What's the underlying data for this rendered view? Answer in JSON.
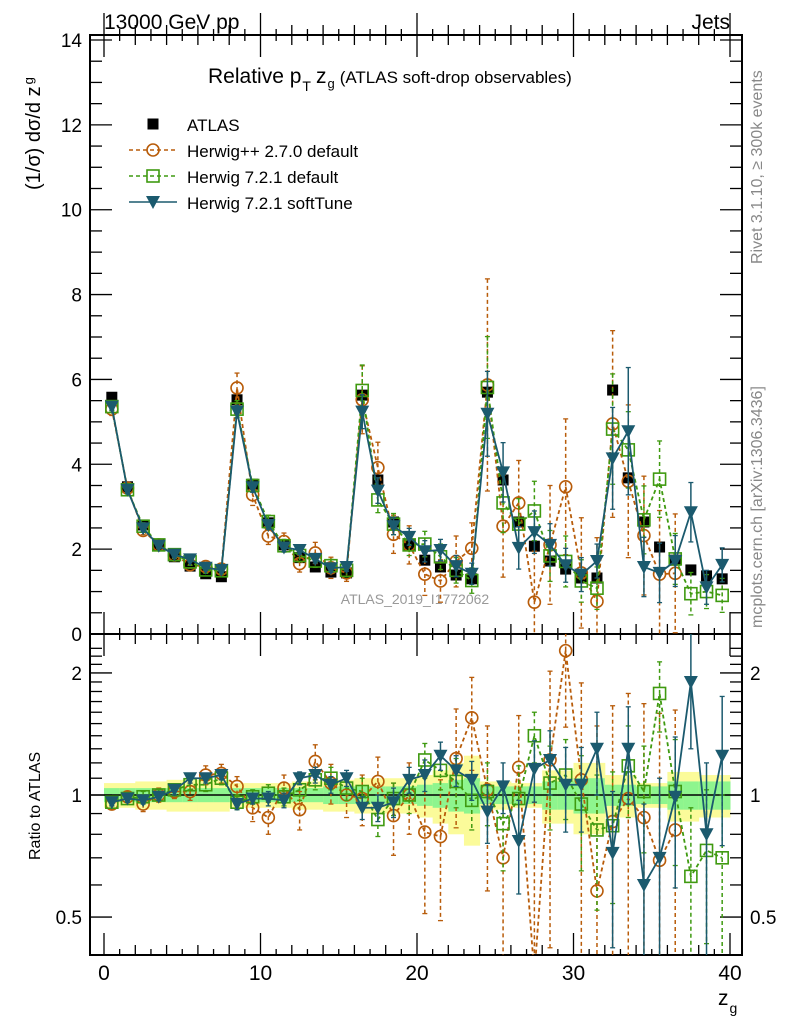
{
  "header": {
    "left": "13000 GeV pp",
    "right": "Jets"
  },
  "side_notes": {
    "rivet": "Rivet 3.1.10, ≥ 300k events",
    "mcplots": "mcplots.cern.ch [arXiv:1306.3436]"
  },
  "watermark": "ATLAS_2019_I1772062",
  "colors": {
    "atlas": "#000000",
    "herwigpp": "#b85c0a",
    "herwig721": "#3f9a10",
    "softtune": "#1b5a6e",
    "band_inner": "#8ef58e",
    "band_outer": "#fbfb9a"
  },
  "chart_data": [
    {
      "type": "scatter",
      "panel": "main",
      "title_main": "Relative p",
      "title_sub": "T",
      "title_z": "z",
      "title_zsub": "g",
      "title_rest": "(ATLAS soft-drop observables)",
      "ylabel": "(1/σ) dσ/d z",
      "ylabel_sub": "g",
      "xlim": [
        -0.5,
        40.5
      ],
      "ylim": [
        0,
        14
      ],
      "yticks": [
        0,
        2,
        4,
        6,
        8,
        10,
        12,
        14
      ],
      "ytick_labels": [
        "0",
        "2",
        "4",
        "6",
        "8",
        "10",
        "12",
        "14"
      ],
      "legend_position": "top-left",
      "x": [
        0.5,
        1.5,
        2.5,
        3.5,
        4.5,
        5.5,
        6.5,
        7.5,
        8.5,
        9.5,
        10.5,
        11.5,
        12.5,
        13.5,
        14.5,
        15.5,
        16.5,
        17.5,
        18.5,
        19.5,
        20.5,
        21.5,
        22.5,
        23.5,
        24.5,
        25.5,
        26.5,
        27.5,
        28.5,
        29.5,
        30.5,
        31.5,
        32.5,
        33.5,
        34.5,
        35.5,
        36.5,
        37.5,
        38.5,
        39.5
      ],
      "series": [
        {
          "name": "ATLAS",
          "key": "atlas",
          "marker": "square-filled",
          "line": "none",
          "values": [
            5.58,
            3.47,
            2.57,
            2.1,
            1.82,
            1.6,
            1.42,
            1.35,
            5.52,
            3.53,
            2.62,
            2.1,
            1.8,
            1.58,
            1.46,
            1.44,
            5.63,
            3.63,
            2.64,
            2.1,
            1.74,
            1.58,
            1.39,
            1.3,
            5.7,
            3.63,
            2.64,
            2.07,
            1.72,
            1.53,
            1.32,
            1.32,
            5.75,
            3.68,
            2.64,
            2.05,
            1.74,
            1.51,
            1.37,
            1.3
          ]
        },
        {
          "name": "Herwig++ 2.7.0 default",
          "key": "herwigpp",
          "marker": "circle-open",
          "line": "dashed",
          "values": [
            5.3,
            3.44,
            2.44,
            2.1,
            1.86,
            1.63,
            1.59,
            1.53,
            5.8,
            3.28,
            2.31,
            2.18,
            1.66,
            1.91,
            1.56,
            1.44,
            5.52,
            3.92,
            2.35,
            2.1,
            1.41,
            1.25,
            1.71,
            2.02,
            5.87,
            2.54,
            3.09,
            0.75,
            2.1,
            3.47,
            1.44,
            0.77,
            4.95,
            3.6,
            2.32,
            1.41,
            1.43,
            0.0,
            0.0,
            0.0
          ],
          "err": [
            0.15,
            0.1,
            0.1,
            0.08,
            0.08,
            0.08,
            0.1,
            0.1,
            0.35,
            0.25,
            0.2,
            0.2,
            0.2,
            0.25,
            0.25,
            0.2,
            0.8,
            0.6,
            0.45,
            0.45,
            0.5,
            0.5,
            0.6,
            0.6,
            2.5,
            1.2,
            1.0,
            1.2,
            1.4,
            1.6,
            1.3,
            1.5,
            2.2,
            1.8,
            1.4,
            1.5,
            1.4,
            0,
            0,
            0
          ]
        },
        {
          "name": "Herwig 7.2.1 default",
          "key": "herwig721",
          "marker": "square-open",
          "line": "dashed",
          "values": [
            5.36,
            3.4,
            2.54,
            2.1,
            1.87,
            1.7,
            1.51,
            1.49,
            5.3,
            3.5,
            2.65,
            2.08,
            1.85,
            1.72,
            1.61,
            1.5,
            5.74,
            3.16,
            2.59,
            2.1,
            2.12,
            1.82,
            1.5,
            1.26,
            5.81,
            3.09,
            2.59,
            2.9,
            1.84,
            1.71,
            1.25,
            1.08,
            4.83,
            4.34,
            2.69,
            3.65,
            1.77,
            0.95,
            1.0,
            0.91
          ],
          "err": [
            0.1,
            0.1,
            0.08,
            0.08,
            0.08,
            0.08,
            0.08,
            0.08,
            0.2,
            0.15,
            0.15,
            0.15,
            0.15,
            0.15,
            0.15,
            0.15,
            0.6,
            0.3,
            0.25,
            0.25,
            0.3,
            0.3,
            0.3,
            0.3,
            1.2,
            0.7,
            0.6,
            0.7,
            0.6,
            0.6,
            0.5,
            0.5,
            1.3,
            0.9,
            0.8,
            0.9,
            0.6,
            0.5,
            0.4,
            0.4
          ]
        },
        {
          "name": "Herwig 7.2.1 softTune",
          "key": "softtune",
          "marker": "triangle-down-filled",
          "line": "solid",
          "values": [
            5.36,
            3.4,
            2.49,
            2.08,
            1.87,
            1.76,
            1.56,
            1.51,
            5.24,
            3.46,
            2.57,
            2.04,
            1.98,
            1.77,
            1.55,
            1.58,
            5.24,
            3.38,
            2.54,
            2.29,
            1.95,
            1.98,
            1.6,
            1.42,
            5.19,
            3.81,
            2.03,
            2.4,
            2.1,
            1.62,
            1.4,
            1.72,
            4.14,
            4.78,
            1.58,
            1.44,
            1.72,
            2.87,
            1.1,
            1.63
          ],
          "err": [
            0.08,
            0.08,
            0.08,
            0.06,
            0.06,
            0.06,
            0.06,
            0.06,
            0.15,
            0.12,
            0.1,
            0.1,
            0.1,
            0.1,
            0.1,
            0.1,
            0.4,
            0.3,
            0.2,
            0.2,
            0.25,
            0.25,
            0.25,
            0.25,
            1.0,
            0.7,
            0.5,
            0.5,
            0.5,
            0.4,
            0.4,
            0.4,
            1.2,
            1.5,
            0.7,
            0.7,
            0.6,
            0.7,
            0.4,
            0.4
          ]
        }
      ]
    },
    {
      "type": "scatter",
      "panel": "ratio",
      "ylabel": "Ratio to ATLAS",
      "xlabel": "z",
      "xlabel_sub": "g",
      "yscale": "log",
      "xlim": [
        -0.5,
        40.5
      ],
      "ylim": [
        0.42,
        2.35
      ],
      "yticks": [
        0.5,
        1,
        2
      ],
      "ytick_labels": [
        "0.5",
        "1",
        "2"
      ],
      "xticks": [
        0,
        10,
        20,
        30,
        40
      ],
      "xtick_labels": [
        "0",
        "10",
        "20",
        "30",
        "40"
      ],
      "band_inner": [
        0.04,
        0.04,
        0.04,
        0.04,
        0.04,
        0.04,
        0.04,
        0.04,
        0.04,
        0.04,
        0.04,
        0.04,
        0.04,
        0.04,
        0.05,
        0.05,
        0.05,
        0.05,
        0.05,
        0.05,
        0.06,
        0.07,
        0.09,
        0.1,
        0.05,
        0.05,
        0.05,
        0.05,
        0.08,
        0.08,
        0.1,
        0.1,
        0.06,
        0.06,
        0.05,
        0.05,
        0.08,
        0.08,
        0.08,
        0.08
      ],
      "band_outer": [
        0.07,
        0.07,
        0.08,
        0.08,
        0.09,
        0.09,
        0.09,
        0.09,
        0.07,
        0.07,
        0.07,
        0.07,
        0.08,
        0.08,
        0.09,
        0.09,
        0.1,
        0.1,
        0.1,
        0.1,
        0.12,
        0.15,
        0.2,
        0.25,
        0.08,
        0.08,
        0.07,
        0.07,
        0.15,
        0.15,
        0.2,
        0.2,
        0.12,
        0.12,
        0.07,
        0.07,
        0.14,
        0.14,
        0.12,
        0.12
      ],
      "series": [
        {
          "name": "Herwig++ 2.7.0 default",
          "key": "herwigpp",
          "values": [
            0.95,
            0.99,
            0.95,
            1.0,
            1.02,
            1.02,
            1.12,
            1.13,
            1.05,
            0.93,
            0.88,
            1.04,
            0.92,
            1.21,
            1.07,
            1.0,
            0.98,
            1.08,
            0.89,
            1.0,
            0.81,
            0.79,
            1.23,
            1.55,
            1.03,
            0.7,
            1.17,
            0.36,
            1.22,
            2.27,
            1.09,
            0.58,
            0.86,
            0.98,
            0.88,
            0.69,
            0.82,
            null,
            null,
            null
          ],
          "err": [
            0.03,
            0.03,
            0.04,
            0.04,
            0.04,
            0.05,
            0.06,
            0.06,
            0.06,
            0.07,
            0.08,
            0.08,
            0.1,
            0.12,
            0.12,
            0.12,
            0.14,
            0.16,
            0.18,
            0.2,
            0.3,
            0.3,
            0.4,
            0.4,
            0.45,
            0.35,
            0.4,
            0.6,
            0.8,
            0.8,
            0.8,
            0.9,
            0.8,
            0.8,
            0.8,
            0.9,
            0.8,
            0,
            0,
            0
          ]
        },
        {
          "name": "Herwig 7.2.1 default",
          "key": "herwig721",
          "values": [
            0.96,
            0.98,
            0.99,
            1.0,
            1.03,
            1.06,
            1.06,
            1.1,
            0.96,
            0.99,
            1.01,
            0.99,
            1.03,
            1.09,
            1.1,
            1.04,
            1.02,
            0.87,
            0.98,
            1.0,
            1.22,
            1.15,
            1.08,
            0.97,
            1.02,
            0.85,
            0.98,
            1.4,
            1.07,
            1.12,
            0.95,
            0.82,
            0.84,
            1.18,
            1.02,
            1.78,
            1.02,
            0.63,
            0.73,
            0.7
          ],
          "err": [
            0.02,
            0.02,
            0.03,
            0.03,
            0.03,
            0.03,
            0.04,
            0.04,
            0.04,
            0.04,
            0.05,
            0.05,
            0.06,
            0.06,
            0.07,
            0.07,
            0.08,
            0.08,
            0.09,
            0.1,
            0.12,
            0.12,
            0.15,
            0.15,
            0.18,
            0.2,
            0.2,
            0.2,
            0.25,
            0.25,
            0.3,
            0.3,
            0.3,
            0.3,
            0.3,
            0.35,
            0.35,
            0.3,
            0.3,
            0.3
          ]
        },
        {
          "name": "Herwig 7.2.1 softTune",
          "key": "softtune",
          "values": [
            0.96,
            0.98,
            0.97,
            0.99,
            1.03,
            1.1,
            1.1,
            1.12,
            0.95,
            0.98,
            0.98,
            0.97,
            1.1,
            1.12,
            1.06,
            1.1,
            0.93,
            0.93,
            0.96,
            1.09,
            1.12,
            1.25,
            1.15,
            1.09,
            0.91,
            1.05,
            0.77,
            1.16,
            1.22,
            1.06,
            1.06,
            1.3,
            0.72,
            1.3,
            0.6,
            0.7,
            0.99,
            1.9,
            0.8,
            1.25
          ],
          "err": [
            0.02,
            0.02,
            0.02,
            0.02,
            0.03,
            0.03,
            0.03,
            0.03,
            0.03,
            0.03,
            0.04,
            0.04,
            0.04,
            0.05,
            0.05,
            0.05,
            0.06,
            0.07,
            0.08,
            0.08,
            0.1,
            0.1,
            0.1,
            0.12,
            0.15,
            0.15,
            0.2,
            0.2,
            0.22,
            0.25,
            0.25,
            0.3,
            0.3,
            0.35,
            0.35,
            0.4,
            0.4,
            0.6,
            0.4,
            0.5
          ]
        }
      ]
    }
  ]
}
